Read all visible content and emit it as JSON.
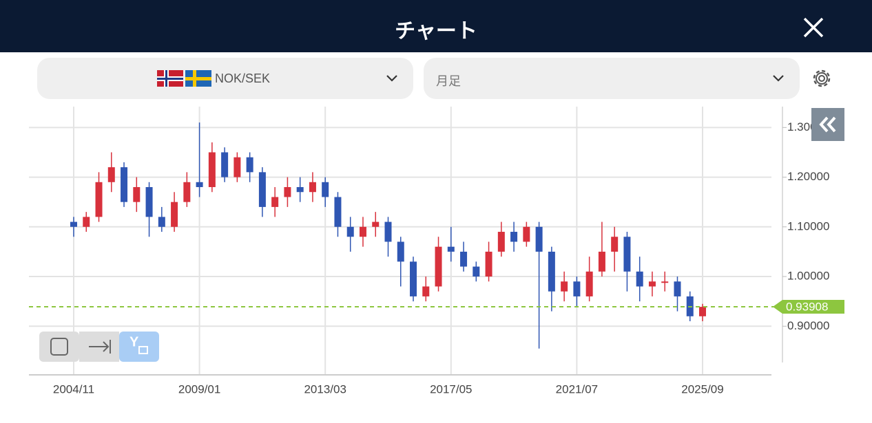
{
  "header": {
    "title": "チャート"
  },
  "selector": {
    "pair": "NOK/SEK",
    "period": "月足"
  },
  "chart_data": {
    "type": "candlestick",
    "x": [
      "2004/11",
      "2005/04",
      "2005/09",
      "2006/02",
      "2006/07",
      "2006/12",
      "2007/05",
      "2007/10",
      "2008/03",
      "2008/08",
      "2009/01",
      "2009/06",
      "2009/11",
      "2010/04",
      "2010/09",
      "2011/02",
      "2011/07",
      "2011/12",
      "2012/05",
      "2012/10",
      "2013/03",
      "2013/08",
      "2014/01",
      "2014/06",
      "2014/11",
      "2015/04",
      "2015/09",
      "2016/02",
      "2016/07",
      "2016/12",
      "2017/05",
      "2017/10",
      "2018/03",
      "2018/08",
      "2019/01",
      "2019/06",
      "2019/11",
      "2020/04",
      "2020/09",
      "2021/02",
      "2021/07",
      "2021/12",
      "2022/05",
      "2022/10",
      "2023/03",
      "2023/08",
      "2024/01",
      "2024/06",
      "2024/11",
      "2025/04",
      "2025/09"
    ],
    "open": [
      1.11,
      1.1,
      1.12,
      1.19,
      1.22,
      1.15,
      1.18,
      1.12,
      1.1,
      1.15,
      1.19,
      1.18,
      1.25,
      1.2,
      1.24,
      1.21,
      1.14,
      1.16,
      1.18,
      1.17,
      1.19,
      1.16,
      1.1,
      1.08,
      1.1,
      1.11,
      1.07,
      1.03,
      0.96,
      0.98,
      1.06,
      1.05,
      1.02,
      1.0,
      1.05,
      1.09,
      1.07,
      1.1,
      1.05,
      0.97,
      0.99,
      0.96,
      1.01,
      1.05,
      1.08,
      1.01,
      0.98,
      0.99,
      0.99,
      0.96,
      0.92
    ],
    "high": [
      1.12,
      1.13,
      1.21,
      1.25,
      1.23,
      1.2,
      1.19,
      1.14,
      1.17,
      1.21,
      1.31,
      1.27,
      1.26,
      1.25,
      1.25,
      1.22,
      1.18,
      1.2,
      1.2,
      1.21,
      1.2,
      1.17,
      1.12,
      1.12,
      1.13,
      1.12,
      1.08,
      1.04,
      1.0,
      1.08,
      1.1,
      1.07,
      1.03,
      1.07,
      1.11,
      1.11,
      1.11,
      1.11,
      1.06,
      1.01,
      1.0,
      1.04,
      1.11,
      1.1,
      1.09,
      1.04,
      1.01,
      1.01,
      1.0,
      0.97,
      0.945
    ],
    "low": [
      1.08,
      1.09,
      1.11,
      1.17,
      1.14,
      1.13,
      1.08,
      1.09,
      1.09,
      1.14,
      1.16,
      1.17,
      1.19,
      1.19,
      1.19,
      1.12,
      1.12,
      1.14,
      1.15,
      1.15,
      1.14,
      1.08,
      1.05,
      1.06,
      1.08,
      1.04,
      0.98,
      0.95,
      0.95,
      0.97,
      1.03,
      1.01,
      0.99,
      0.99,
      1.04,
      1.05,
      1.06,
      0.855,
      0.93,
      0.95,
      0.94,
      0.95,
      1.0,
      1.01,
      0.97,
      0.95,
      0.96,
      0.97,
      0.93,
      0.91,
      0.91
    ],
    "close": [
      1.1,
      1.12,
      1.19,
      1.22,
      1.15,
      1.18,
      1.12,
      1.1,
      1.15,
      1.19,
      1.18,
      1.25,
      1.2,
      1.24,
      1.21,
      1.14,
      1.16,
      1.18,
      1.17,
      1.19,
      1.16,
      1.1,
      1.08,
      1.1,
      1.11,
      1.07,
      1.03,
      0.96,
      0.98,
      1.06,
      1.05,
      1.02,
      1.0,
      1.05,
      1.09,
      1.07,
      1.1,
      1.05,
      0.97,
      0.99,
      0.96,
      1.01,
      1.05,
      1.08,
      1.01,
      0.98,
      0.99,
      0.99,
      0.96,
      0.92,
      0.939
    ],
    "up_color": "#d8313c",
    "down_color": "#2f56b3",
    "ylim": [
      0.827,
      1.342
    ],
    "yticks": [
      {
        "value": 0.9,
        "label": "0.90000"
      },
      {
        "value": 1.0,
        "label": "1.00000"
      },
      {
        "value": 1.1,
        "label": "1.10000"
      },
      {
        "value": 1.2,
        "label": "1.20000"
      },
      {
        "value": 1.3,
        "label": "1.30000"
      }
    ],
    "xticks": [
      "2004/11",
      "2009/01",
      "2013/03",
      "2017/05",
      "2021/07",
      "2025/09"
    ],
    "last_price": 0.93908,
    "last_color": "#8dc63f",
    "grid": true
  }
}
